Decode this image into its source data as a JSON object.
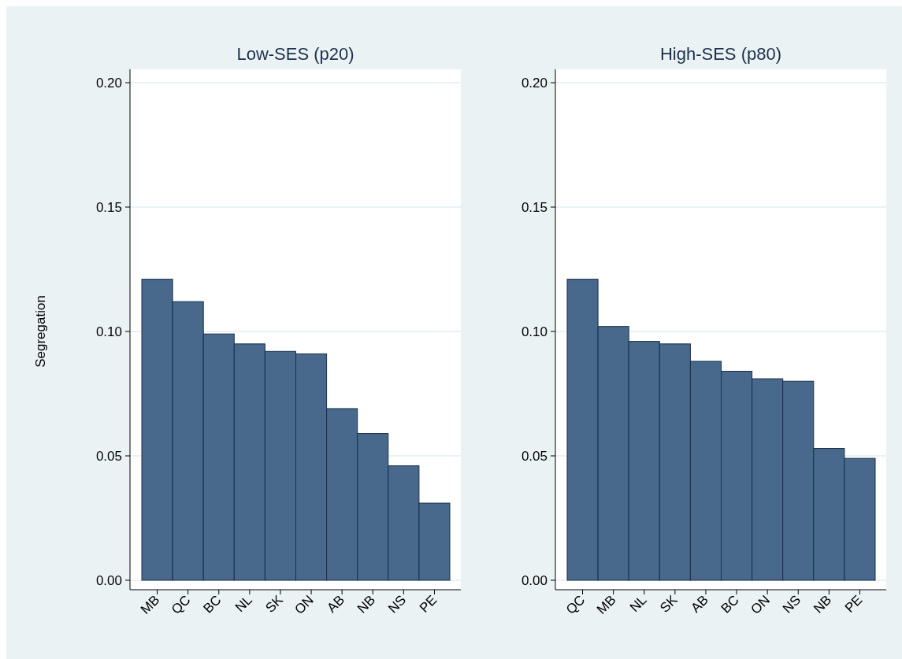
{
  "chart_data": [
    {
      "type": "bar",
      "title": "Low-SES (p20)",
      "ylabel": "Segregation",
      "categories": [
        "MB",
        "QC",
        "BC",
        "NL",
        "SK",
        "ON",
        "AB",
        "NB",
        "NS",
        "PE"
      ],
      "values": [
        0.121,
        0.112,
        0.099,
        0.095,
        0.092,
        0.091,
        0.069,
        0.059,
        0.046,
        0.031
      ],
      "color": "#48698c",
      "ylim": [
        0,
        0.2
      ],
      "yticks": [
        {
          "value": 0,
          "label": "0.00"
        },
        {
          "value": 0.05,
          "label": "0.05"
        },
        {
          "value": 0.1,
          "label": "0.10"
        },
        {
          "value": 0.15,
          "label": "0.15"
        },
        {
          "value": 0.2,
          "label": "0.20"
        }
      ],
      "grid": "y"
    },
    {
      "type": "bar",
      "title": "High-SES (p80)",
      "categories": [
        "QC",
        "MB",
        "NL",
        "SK",
        "AB",
        "BC",
        "ON",
        "NS",
        "NB",
        "PE"
      ],
      "values": [
        0.121,
        0.102,
        0.096,
        0.095,
        0.088,
        0.084,
        0.081,
        0.08,
        0.053,
        0.049
      ],
      "color": "#48698c",
      "ylim": [
        0,
        0.2
      ],
      "yticks": [
        {
          "value": 0,
          "label": "0.00"
        },
        {
          "value": 0.05,
          "label": "0.05"
        },
        {
          "value": 0.1,
          "label": "0.10"
        },
        {
          "value": 0.15,
          "label": "0.15"
        },
        {
          "value": 0.2,
          "label": "0.20"
        }
      ],
      "grid": "y"
    }
  ]
}
